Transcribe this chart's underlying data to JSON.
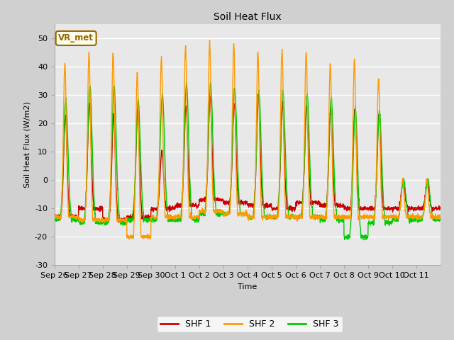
{
  "title": "Soil Heat Flux",
  "ylabel": "Soil Heat Flux (W/m2)",
  "xlabel": "Time",
  "ylim": [
    -30,
    55
  ],
  "yticks": [
    -30,
    -20,
    -10,
    0,
    10,
    20,
    30,
    40,
    50
  ],
  "bg_color": "#e8e8e8",
  "fig_color": "#d0d0d0",
  "shf1_color": "#cc0000",
  "shf2_color": "#ff9900",
  "shf3_color": "#00cc00",
  "legend_label1": "SHF 1",
  "legend_label2": "SHF 2",
  "legend_label3": "SHF 3",
  "annotation_text": "VR_met",
  "annotation_color": "#996600",
  "x_tick_labels": [
    "Sep 26",
    "Sep 27",
    "Sep 28",
    "Sep 29",
    "Sep 30",
    "Oct 1",
    "Oct 2",
    "Oct 3",
    "Oct 4",
    "Oct 5",
    "Oct 6",
    "Oct 7",
    "Oct 8",
    "Oct 9",
    "Oct 10",
    "Oct 11"
  ],
  "num_days": 16,
  "ppd": 144,
  "line_width": 1.0,
  "font_size": 8,
  "title_font_size": 10,
  "peaks_shf1": [
    23,
    27,
    23,
    25,
    10,
    26,
    29,
    27,
    30,
    27,
    26,
    25,
    25,
    23,
    0,
    0
  ],
  "peaks_shf2": [
    41,
    45,
    45,
    38,
    43,
    47,
    48,
    48,
    45,
    46,
    45,
    41,
    42,
    36,
    0,
    0
  ],
  "peaks_shf3": [
    28,
    33,
    33,
    28,
    30,
    34,
    34,
    32,
    31,
    31,
    30,
    29,
    25,
    24,
    0,
    0
  ],
  "nights_shf1": [
    -13,
    -10,
    -14,
    -13,
    -10,
    -9,
    -7,
    -8,
    -9,
    -10,
    -8,
    -9,
    -10,
    -10,
    -10,
    -10
  ],
  "nights_shf2": [
    -13,
    -14,
    -14,
    -20,
    -13,
    -13,
    -11,
    -12,
    -13,
    -13,
    -13,
    -13,
    -13,
    -13,
    -13,
    -13
  ],
  "nights_shf3": [
    -14,
    -15,
    -15,
    -14,
    -14,
    -14,
    -12,
    -12,
    -13,
    -13,
    -13,
    -14,
    -20,
    -15,
    -14,
    -14
  ]
}
